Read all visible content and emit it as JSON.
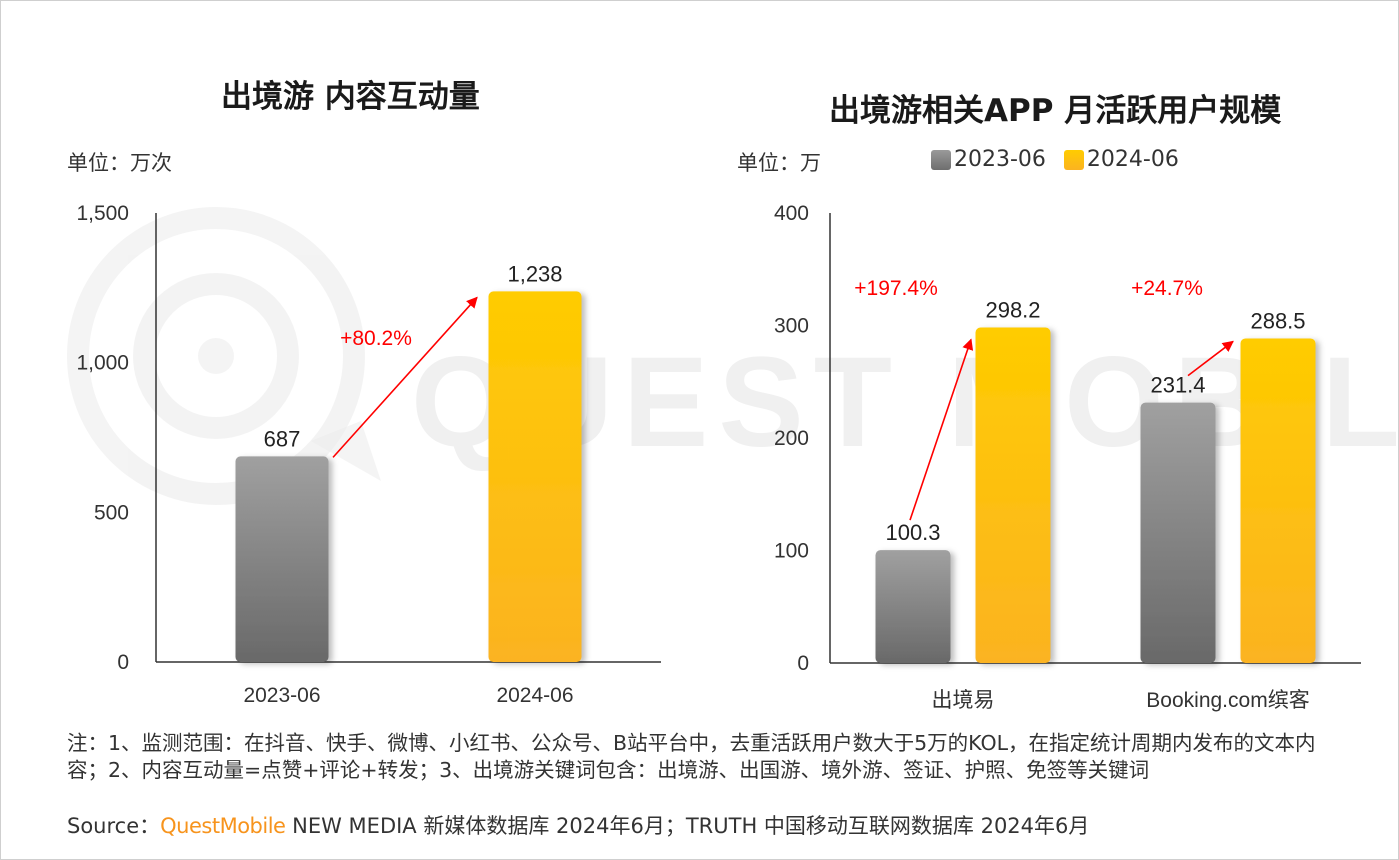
{
  "left": {
    "title": "出境游 内容互动量",
    "unit": "单位：万次"
  },
  "right": {
    "title": "出境游相关APP 月活跃用户规模",
    "unit": "单位：万"
  },
  "legend": [
    {
      "label": "2023-06",
      "color": "#8c8c8c"
    },
    {
      "label": "2024-06",
      "color": "#ffc000"
    }
  ],
  "colors": {
    "gray": "#7f7f7f",
    "gold": "#ffc000",
    "growth": "#ff0000"
  },
  "watermark": "QUESTMOBILE",
  "note": "注：1、监测范围：在抖音、快手、微博、小红书、公众号、B站平台中，去重活跃用户数大于5万的KOL，在指定统计周期内发布的文本内容；2、内容互动量=点赞+评论+转发；3、出境游关键词包含：出境游、出国游、境外游、签证、护照、免签等关键词",
  "source": {
    "prefix": "Source：",
    "brand": "QuestMobile",
    "rest": " NEW MEDIA 新媒体数据库 2024年6月；TRUTH 中国移动互联网数据库 2024年6月"
  },
  "chart_data": [
    {
      "type": "bar",
      "title": "出境游 内容互动量",
      "unit": "单位：万次",
      "categories": [
        "2023-06",
        "2024-06"
      ],
      "values": [
        687,
        1238
      ],
      "data_labels": [
        "687",
        "1,238"
      ],
      "bar_colors": [
        "gray",
        "gold"
      ],
      "ylim": [
        0,
        1500
      ],
      "yticks": [
        0,
        500,
        1000,
        1500
      ],
      "ytick_labels": [
        "0",
        "500",
        "1,000",
        "1,500"
      ],
      "annotations": [
        {
          "text": "+80.2%",
          "from": 0,
          "to": 1
        }
      ],
      "grid": false
    },
    {
      "type": "bar",
      "title": "出境游相关APP 月活跃用户规模",
      "unit": "单位：万",
      "categories": [
        "出境易",
        "Booking.com缤客"
      ],
      "series": [
        {
          "name": "2023-06",
          "values": [
            100.3,
            231.4
          ],
          "labels": [
            "100.3",
            "231.4"
          ]
        },
        {
          "name": "2024-06",
          "values": [
            298.2,
            288.5
          ],
          "labels": [
            "298.2",
            "288.5"
          ]
        }
      ],
      "ylim": [
        0,
        400
      ],
      "yticks": [
        0,
        100,
        200,
        300,
        400
      ],
      "ytick_labels": [
        "0",
        "100",
        "200",
        "300",
        "400"
      ],
      "annotations": [
        {
          "text": "+197.4%",
          "category": 0
        },
        {
          "text": "+24.7%",
          "category": 1
        }
      ],
      "legend": "top",
      "grid": false
    }
  ]
}
